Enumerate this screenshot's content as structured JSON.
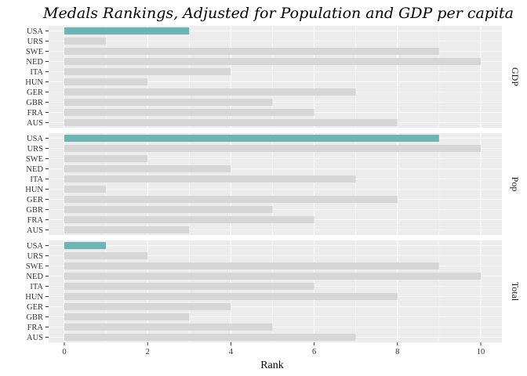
{
  "chart_data": {
    "type": "bar",
    "orientation": "horizontal",
    "title": "Medals Rankings, Adjusted for Population and GDP per capita",
    "xlabel": "Rank",
    "ylabel": "",
    "xlim": [
      0,
      10.5
    ],
    "xticks": [
      0,
      2,
      4,
      6,
      8,
      10
    ],
    "categories": [
      "USA",
      "URS",
      "SWE",
      "NED",
      "ITA",
      "HUN",
      "GER",
      "GBR",
      "FRA",
      "AUS"
    ],
    "highlight_category": "USA",
    "colors": {
      "highlight": "#6db5b5",
      "other": "#d6d6d6",
      "panel_bg": "#ececec",
      "grid": "#ffffff"
    },
    "grid": true,
    "facets": [
      {
        "name": "GDP",
        "values": [
          3,
          1,
          9,
          10,
          4,
          2,
          7,
          5,
          6,
          8
        ]
      },
      {
        "name": "Pop",
        "values": [
          9,
          10,
          2,
          4,
          7,
          1,
          8,
          5,
          6,
          3
        ]
      },
      {
        "name": "Total",
        "values": [
          1,
          2,
          9,
          10,
          6,
          8,
          4,
          3,
          5,
          7
        ]
      }
    ]
  }
}
